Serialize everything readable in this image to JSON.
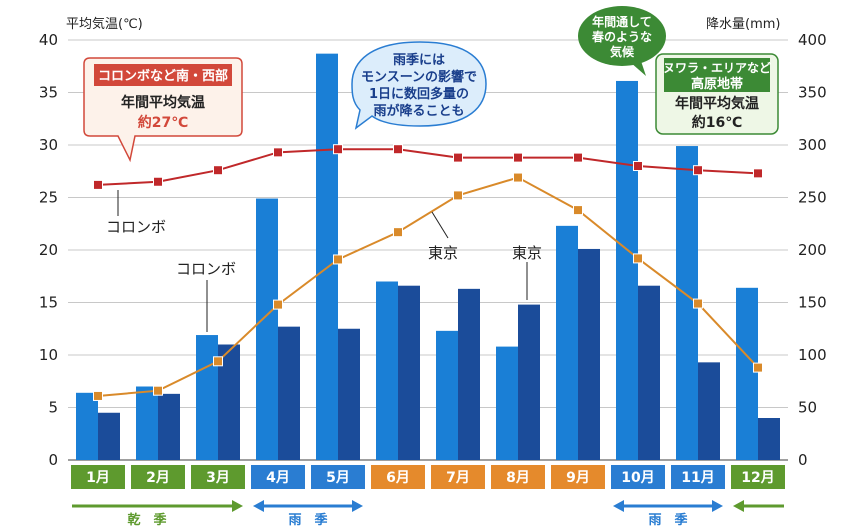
{
  "chart_data": {
    "type": "bar",
    "title": "",
    "y_left_label": "平均気温(℃)",
    "y_right_label": "降水量(mm)",
    "y_left_range": [
      0,
      40
    ],
    "y_right_range": [
      0,
      400
    ],
    "y_left_ticks": [
      "0",
      "5",
      "10",
      "15",
      "20",
      "25",
      "30",
      "35",
      "40"
    ],
    "y_right_ticks": [
      "0",
      "50",
      "100",
      "150",
      "200",
      "250",
      "300",
      "350",
      "400"
    ],
    "categories": [
      "1月",
      "2月",
      "3月",
      "4月",
      "5月",
      "6月",
      "7月",
      "8月",
      "9月",
      "10月",
      "11月",
      "12月"
    ],
    "month_colors": [
      "#5e9a2e",
      "#5e9a2e",
      "#5e9a2e",
      "#2a7dd2",
      "#2a7dd2",
      "#e58a2c",
      "#e58a2c",
      "#e58a2c",
      "#e58a2c",
      "#2a7dd2",
      "#2a7dd2",
      "#5e9a2e"
    ],
    "series": [
      {
        "name": "コロンボ降水量",
        "kind": "bar",
        "axis": "right",
        "color": "#1a7fd6",
        "values": [
          64,
          70,
          119,
          249,
          387,
          170,
          123,
          108,
          223,
          361,
          299,
          164
        ]
      },
      {
        "name": "東京降水量",
        "kind": "bar",
        "axis": "right",
        "color": "#1b4c9a",
        "values": [
          45,
          63,
          110,
          127,
          125,
          166,
          163,
          148,
          201,
          166,
          93,
          40
        ]
      },
      {
        "name": "コロンボ平均気温",
        "kind": "line",
        "axis": "left",
        "color": "#c0282a",
        "values": [
          26.2,
          26.5,
          27.6,
          29.3,
          29.6,
          29.6,
          28.8,
          28.8,
          28.8,
          28.0,
          27.6,
          27.3
        ]
      },
      {
        "name": "東京平均気温",
        "kind": "line",
        "axis": "left",
        "color": "#d98a2a",
        "values": [
          6.1,
          6.6,
          9.4,
          14.8,
          19.1,
          21.7,
          25.2,
          26.9,
          23.8,
          19.2,
          14.9,
          8.8
        ]
      }
    ],
    "annotations": {
      "colombo_bar": "コロンボ",
      "colombo_line": "コロンボ",
      "tokyo_line": "東京",
      "tokyo_bar": "東京"
    },
    "seasons": [
      {
        "label": "乾　季",
        "color": "#5e9a2e"
      },
      {
        "label": "雨　季",
        "color": "#2a7dd2"
      },
      {
        "label": "雨　季",
        "color": "#2a7dd2"
      }
    ],
    "callouts": {
      "colombo": {
        "header": "コロンボなど南・西部",
        "line1": "年間平均気温",
        "line2": "約27℃"
      },
      "highland": {
        "header1": "ヌワラ・エリアなど",
        "header2": "高原地帯",
        "line1": "年間平均気温",
        "line2": "約16℃"
      },
      "monsoon": {
        "lines": [
          "雨季には",
          "モンスーンの影響で",
          "1日に数回多量の",
          "雨が降ることも"
        ]
      },
      "spring": {
        "lines": [
          "年間通して",
          "春のような",
          "気候"
        ]
      }
    }
  }
}
